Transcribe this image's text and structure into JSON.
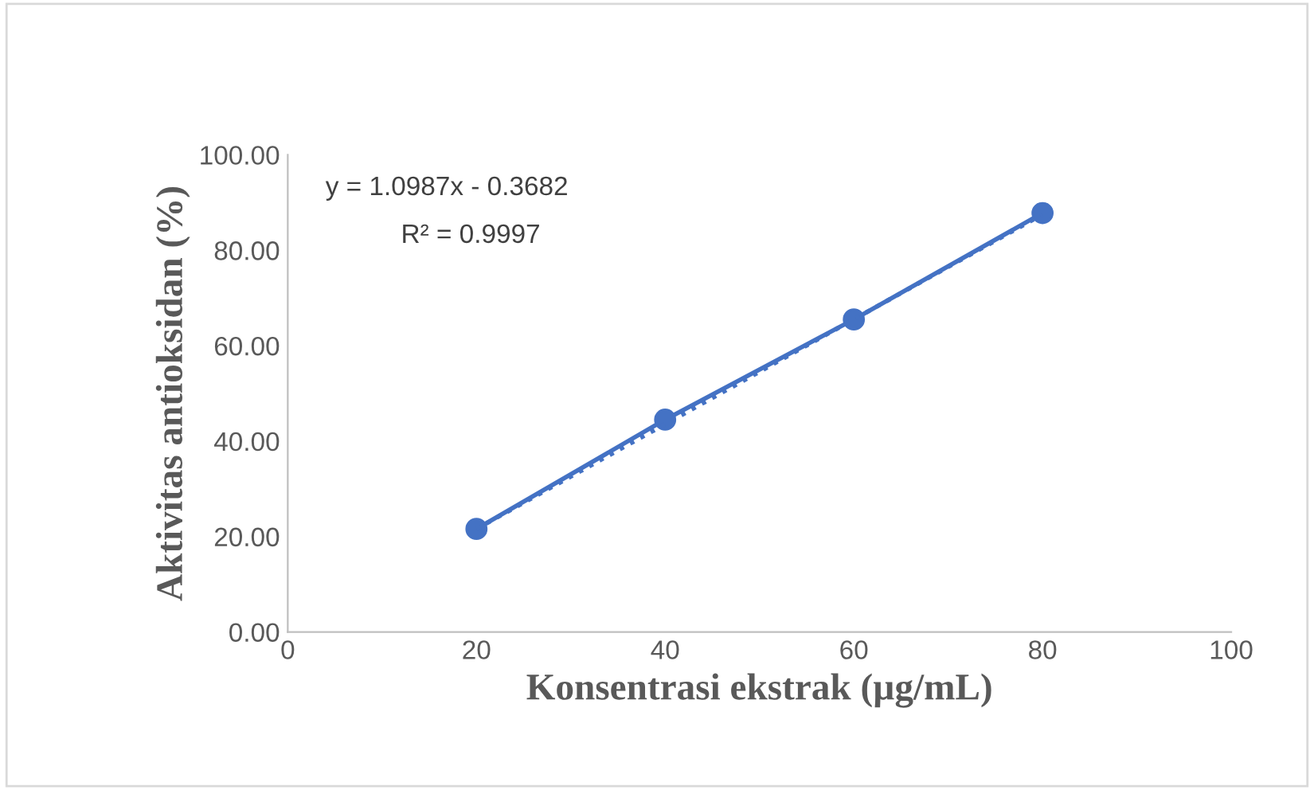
{
  "chart_data": {
    "type": "line",
    "xlabel": "Konsentrasi ekstrak (µg/mL)",
    "ylabel": "Aktivitas antioksidan (%)",
    "annotations": [
      "y = 1.0987x - 0.3682",
      "R² = 0.9997"
    ],
    "xlim": [
      0,
      100
    ],
    "xticks": [
      0,
      20,
      40,
      60,
      80,
      100
    ],
    "ylim": [
      0,
      100
    ],
    "yticks": [
      {
        "value": 0,
        "label": "0.00"
      },
      {
        "value": 20,
        "label": "20.00"
      },
      {
        "value": 40,
        "label": "40.00"
      },
      {
        "value": 60,
        "label": "60.00"
      },
      {
        "value": 80,
        "label": "80.00"
      },
      {
        "value": 100,
        "label": "100.00"
      }
    ],
    "grid": false,
    "legend": false,
    "series": [
      {
        "color": "#4472c4",
        "x": [
          20,
          40,
          60,
          80
        ],
        "values": [
          21.6,
          44.5,
          65.5,
          87.8
        ],
        "marker": "circle",
        "line_style": "solid"
      },
      {
        "type": "line",
        "color": "#4472c4",
        "x": [
          20,
          80
        ],
        "values": [
          21.6,
          87.5
        ],
        "marker": "none",
        "line_style": "dotted"
      }
    ]
  }
}
